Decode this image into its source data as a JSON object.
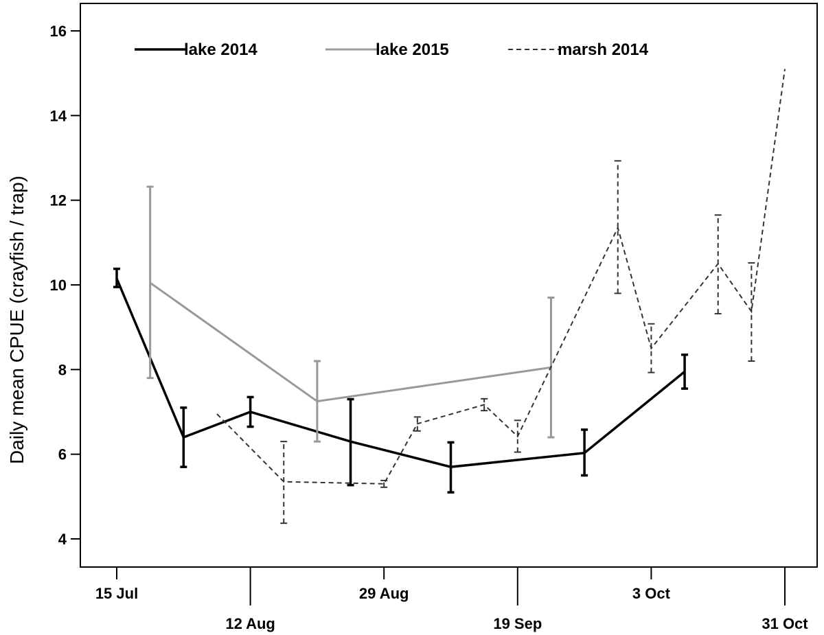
{
  "chart_data": {
    "type": "line",
    "ylabel": "Daily mean CPUE (crayfish / trap)",
    "ylim": [
      3.3,
      16.7
    ],
    "yticks": [
      4,
      6,
      8,
      10,
      12,
      14,
      16
    ],
    "xlim": [
      -8,
      115
    ],
    "xticks": [
      {
        "x": 0,
        "label": "15 Jul",
        "row": 1
      },
      {
        "x": 24,
        "label": "12 Aug",
        "row": 2
      },
      {
        "x": 48,
        "label": "29 Aug",
        "row": 1
      },
      {
        "x": 72,
        "label": "19 Sep",
        "row": 2
      },
      {
        "x": 96,
        "label": "3 Oct",
        "row": 1
      },
      {
        "x": 120,
        "label": "31 Oct",
        "row": 2
      }
    ],
    "legend_position": "top",
    "series": [
      {
        "name": "lake 2014",
        "color": "#000000",
        "style": "solid",
        "points": [
          {
            "x": 0,
            "y": 10.15,
            "lo": 9.95,
            "hi": 10.38
          },
          {
            "x": 12,
            "y": 6.4,
            "lo": 5.7,
            "hi": 7.1
          },
          {
            "x": 24,
            "y": 7.0,
            "lo": 6.65,
            "hi": 7.35
          },
          {
            "x": 42,
            "y": 6.3,
            "lo": 5.27,
            "hi": 7.3
          },
          {
            "x": 60,
            "y": 5.7,
            "lo": 5.1,
            "hi": 6.28
          },
          {
            "x": 84,
            "y": 6.03,
            "lo": 5.5,
            "hi": 6.58
          },
          {
            "x": 102,
            "y": 7.95,
            "lo": 7.55,
            "hi": 8.35
          }
        ]
      },
      {
        "name": "lake 2015",
        "color": "#999999",
        "style": "solid",
        "points": [
          {
            "x": 6,
            "y": 10.05,
            "lo": 7.8,
            "hi": 12.32
          },
          {
            "x": 36,
            "y": 7.25,
            "lo": 6.3,
            "hi": 8.2
          },
          {
            "x": 78,
            "y": 8.05,
            "lo": 6.4,
            "hi": 9.7
          }
        ]
      },
      {
        "name": "marsh 2014",
        "color": "#333333",
        "style": "dashed",
        "points": [
          {
            "x": 18,
            "y": 6.95,
            "lo": null,
            "hi": null
          },
          {
            "x": 30,
            "y": 5.35,
            "lo": 4.37,
            "hi": 6.3
          },
          {
            "x": 48,
            "y": 5.3,
            "lo": 5.22,
            "hi": 5.38
          },
          {
            "x": 54,
            "y": 6.72,
            "lo": 6.55,
            "hi": 6.88
          },
          {
            "x": 66,
            "y": 7.17,
            "lo": 7.03,
            "hi": 7.31
          },
          {
            "x": 72,
            "y": 6.42,
            "lo": 6.05,
            "hi": 6.8
          },
          {
            "x": 90,
            "y": 11.35,
            "lo": 9.8,
            "hi": 12.93
          },
          {
            "x": 96,
            "y": 8.5,
            "lo": 7.93,
            "hi": 9.08
          },
          {
            "x": 108,
            "y": 10.5,
            "lo": 9.32,
            "hi": 11.65
          },
          {
            "x": 114,
            "y": 9.37,
            "lo": 8.2,
            "hi": 10.52
          },
          {
            "x": 120,
            "y": 15.1,
            "lo": null,
            "hi": null
          }
        ]
      }
    ]
  }
}
